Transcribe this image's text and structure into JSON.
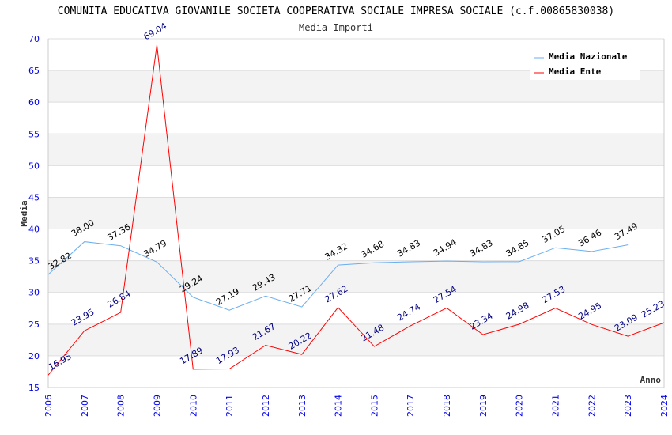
{
  "chart_data": {
    "type": "line",
    "title": "COMUNITA EDUCATIVA GIOVANILE SOCIETA COOPERATIVA SOCIALE IMPRESA SOCIALE (c.f.00865830038)",
    "subtitle": "Media Importi",
    "xlabel": "Anno",
    "ylabel": "Media",
    "ylim": [
      15,
      70
    ],
    "yticks": [
      15,
      20,
      25,
      30,
      35,
      40,
      45,
      50,
      55,
      60,
      65,
      70
    ],
    "categories": [
      "2006",
      "2007",
      "2008",
      "2009",
      "2010",
      "2011",
      "2012",
      "2013",
      "2014",
      "2015",
      "2017",
      "2018",
      "2019",
      "2020",
      "2021",
      "2022",
      "2023",
      "2024"
    ],
    "legend_position": "top-right",
    "series": [
      {
        "name": "Media Nazionale",
        "color": "#6aaef0",
        "label_color": "#000000",
        "values": [
          32.82,
          38.0,
          37.36,
          34.79,
          29.24,
          27.19,
          29.43,
          27.71,
          34.32,
          34.68,
          34.83,
          34.94,
          34.83,
          34.85,
          37.05,
          36.46,
          37.49,
          null
        ],
        "labels": [
          "32.82",
          "38.00",
          "37.36",
          "34.79",
          "29.24",
          "27.19",
          "29.43",
          "27.71",
          "34.32",
          "34.68",
          "34.83",
          "34.94",
          "34.83",
          "34.85",
          "37.05",
          "36.46",
          "37.49",
          null
        ]
      },
      {
        "name": "Media Ente",
        "color": "#ff0000",
        "label_color": "#000080",
        "values": [
          16.95,
          23.95,
          26.84,
          69.04,
          17.89,
          17.93,
          21.67,
          20.22,
          27.62,
          21.48,
          24.74,
          27.54,
          23.34,
          24.98,
          27.53,
          24.95,
          23.09,
          25.23
        ],
        "labels": [
          "16.95",
          "23.95",
          "26.84",
          "69.04",
          "17.89",
          "17.93",
          "21.67",
          "20.22",
          "27.62",
          "21.48",
          "24.74",
          "27.54",
          "23.34",
          "24.98",
          "27.53",
          "24.95",
          "23.09",
          "25.23"
        ]
      }
    ]
  }
}
